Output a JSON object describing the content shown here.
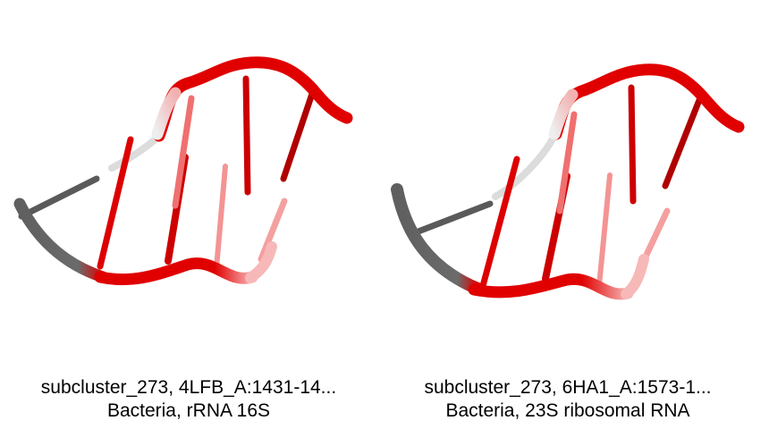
{
  "panels": [
    {
      "title": "subcluster_273, 4LFB_A:1431-14...",
      "subtitle": "Bacteria, rRNA 16S"
    },
    {
      "title": "subcluster_273, 6HA1_A:1573-1...",
      "subtitle": "Bacteria, 23S ribosomal RNA"
    }
  ],
  "colors": {
    "backbone_red": "#e00000",
    "backbone_grey": "#6b6b6b",
    "faded_red": "#f7a9a9"
  }
}
